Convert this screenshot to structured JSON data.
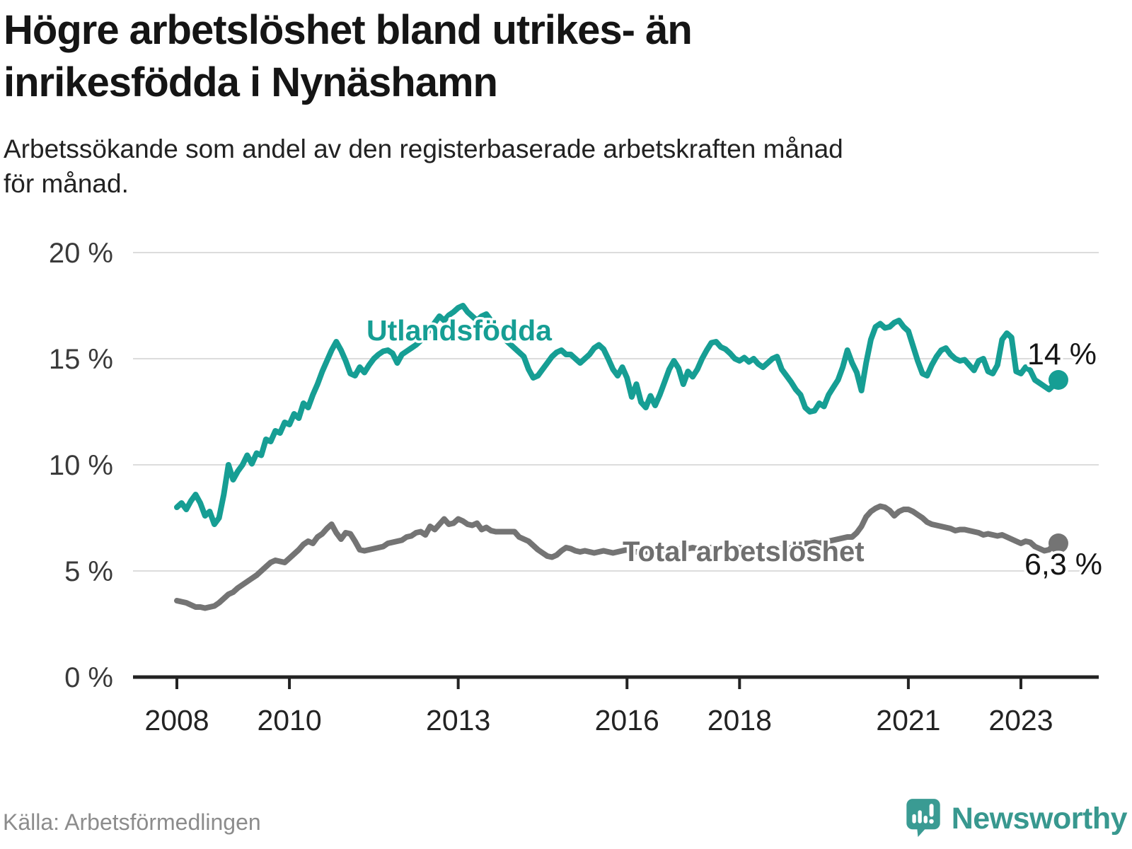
{
  "header": {
    "title_line1": "Högre arbetslöshet bland utrikes- än",
    "title_line2": "inrikesfödda i Nynäshamn",
    "subtitle_line1": "Arbetssökande som andel av den registerbaserade arbetskraften månad",
    "subtitle_line2": "för månad."
  },
  "footer": {
    "source": "Källa: Arbetsförmedlingen",
    "brand": "Newsworthy",
    "brand_color": "#38988f"
  },
  "chart_data": {
    "type": "line",
    "title": "Högre arbetslöshet bland utrikes- än inrikesfödda i Nynäshamn",
    "subtitle": "Arbetssökande som andel av den registerbaserade arbetskraften månad för månad.",
    "xlabel": "",
    "ylabel": "",
    "ylim": [
      0,
      20
    ],
    "grid": true,
    "legend_position": "inline",
    "x_start_year": 2008,
    "x_end_year_fraction": 2023.67,
    "points_per_year": 12,
    "yticks": [
      {
        "value": 20,
        "label": "20 %"
      },
      {
        "value": 15,
        "label": "15 %"
      },
      {
        "value": 10,
        "label": "10 %"
      },
      {
        "value": 5,
        "label": "5 %"
      },
      {
        "value": 0,
        "label": "0 %"
      }
    ],
    "xticks": [
      {
        "year": 2008,
        "label": "2008"
      },
      {
        "year": 2010,
        "label": "2010"
      },
      {
        "year": 2013,
        "label": "2013"
      },
      {
        "year": 2016,
        "label": "2016"
      },
      {
        "year": 2018,
        "label": "2018"
      },
      {
        "year": 2021,
        "label": "2021"
      },
      {
        "year": 2023,
        "label": "2023"
      }
    ],
    "series": [
      {
        "name": "Utlandsfödda",
        "color": "#169e94",
        "label_color": "#169e94",
        "end_label": "14 %",
        "values": [
          8.0,
          8.2,
          7.9,
          8.3,
          8.6,
          8.2,
          7.6,
          7.8,
          7.2,
          7.5,
          8.6,
          10.0,
          9.3,
          9.7,
          10.0,
          10.45,
          10.05,
          10.55,
          10.45,
          11.2,
          11.1,
          11.6,
          11.5,
          12.0,
          11.9,
          12.4,
          12.2,
          12.9,
          12.7,
          13.3,
          13.8,
          14.4,
          14.9,
          15.4,
          15.8,
          15.4,
          14.9,
          14.3,
          14.2,
          14.6,
          14.35,
          14.7,
          15.0,
          15.2,
          15.35,
          15.4,
          15.25,
          14.8,
          15.2,
          15.35,
          15.5,
          15.65,
          15.85,
          16.1,
          16.4,
          16.7,
          17.0,
          16.8,
          17.05,
          17.2,
          17.4,
          17.5,
          17.2,
          17.0,
          16.8,
          17.0,
          17.1,
          16.8,
          16.5,
          16.2,
          15.9,
          15.7,
          15.5,
          15.3,
          15.1,
          14.5,
          14.1,
          14.2,
          14.5,
          14.8,
          15.1,
          15.3,
          15.4,
          15.2,
          15.2,
          15.0,
          14.8,
          15.0,
          15.2,
          15.5,
          15.65,
          15.45,
          15.0,
          14.5,
          14.2,
          14.6,
          14.1,
          13.2,
          13.8,
          12.95,
          12.7,
          13.25,
          12.8,
          13.3,
          13.9,
          14.5,
          14.9,
          14.55,
          13.8,
          14.4,
          14.15,
          14.5,
          15.0,
          15.4,
          15.75,
          15.8,
          15.55,
          15.45,
          15.25,
          15.0,
          14.9,
          15.05,
          14.85,
          15.0,
          14.75,
          14.6,
          14.8,
          15.0,
          15.1,
          14.5,
          14.2,
          13.9,
          13.55,
          13.3,
          12.7,
          12.5,
          12.55,
          12.9,
          12.75,
          13.3,
          13.65,
          14.0,
          14.6,
          15.4,
          14.8,
          14.35,
          13.5,
          14.8,
          15.9,
          16.5,
          16.65,
          16.45,
          16.5,
          16.7,
          16.8,
          16.5,
          16.3,
          15.6,
          14.9,
          14.3,
          14.2,
          14.7,
          15.1,
          15.4,
          15.5,
          15.2,
          15.0,
          14.9,
          14.95,
          14.7,
          14.45,
          14.9,
          15.0,
          14.4,
          14.3,
          14.7,
          15.9,
          16.2,
          16.0,
          14.4,
          14.3,
          14.6,
          14.45,
          14.0,
          13.85,
          13.7,
          13.55,
          13.75,
          14.0
        ]
      },
      {
        "name": "Total arbetslöshet",
        "color": "#747474",
        "label_color": "#6f6f6f",
        "end_label": "6,3 %",
        "values": [
          3.6,
          3.55,
          3.5,
          3.4,
          3.3,
          3.3,
          3.25,
          3.3,
          3.35,
          3.5,
          3.7,
          3.9,
          4.0,
          4.2,
          4.35,
          4.5,
          4.65,
          4.8,
          5.0,
          5.2,
          5.4,
          5.5,
          5.45,
          5.4,
          5.6,
          5.8,
          6.0,
          6.25,
          6.4,
          6.3,
          6.6,
          6.75,
          7.0,
          7.2,
          6.8,
          6.5,
          6.8,
          6.75,
          6.4,
          6.0,
          5.95,
          6.0,
          6.05,
          6.1,
          6.15,
          6.3,
          6.35,
          6.4,
          6.45,
          6.6,
          6.65,
          6.8,
          6.85,
          6.7,
          7.1,
          6.95,
          7.2,
          7.45,
          7.2,
          7.25,
          7.45,
          7.35,
          7.2,
          7.15,
          7.25,
          6.95,
          7.05,
          6.9,
          6.85,
          6.85,
          6.85,
          6.85,
          6.85,
          6.6,
          6.5,
          6.4,
          6.2,
          6.0,
          5.85,
          5.7,
          5.65,
          5.75,
          5.95,
          6.1,
          6.05,
          5.95,
          5.9,
          5.95,
          5.9,
          5.85,
          5.9,
          5.95,
          5.9,
          5.85,
          5.9,
          5.95,
          6.0,
          5.95,
          5.9,
          5.85,
          5.9,
          5.95,
          6.0,
          6.05,
          6.0,
          5.95,
          6.0,
          6.05,
          6.0,
          6.05,
          6.1,
          6.05,
          6.0,
          6.05,
          6.1,
          6.15,
          6.1,
          6.05,
          6.1,
          6.1,
          6.1,
          6.05,
          6.0,
          6.05,
          6.1,
          6.05,
          6.0,
          6.05,
          6.1,
          6.05,
          6.0,
          6.1,
          6.2,
          6.25,
          6.3,
          6.3,
          6.35,
          6.3,
          6.35,
          6.4,
          6.45,
          6.5,
          6.55,
          6.6,
          6.6,
          6.8,
          7.1,
          7.55,
          7.8,
          7.95,
          8.05,
          8.0,
          7.85,
          7.6,
          7.8,
          7.9,
          7.9,
          7.8,
          7.65,
          7.5,
          7.3,
          7.2,
          7.15,
          7.1,
          7.05,
          7.0,
          6.9,
          6.95,
          6.95,
          6.9,
          6.85,
          6.8,
          6.7,
          6.75,
          6.7,
          6.65,
          6.7,
          6.6,
          6.5,
          6.4,
          6.3,
          6.4,
          6.35,
          6.15,
          6.05,
          5.95,
          6.0,
          6.2,
          6.3
        ]
      }
    ]
  }
}
